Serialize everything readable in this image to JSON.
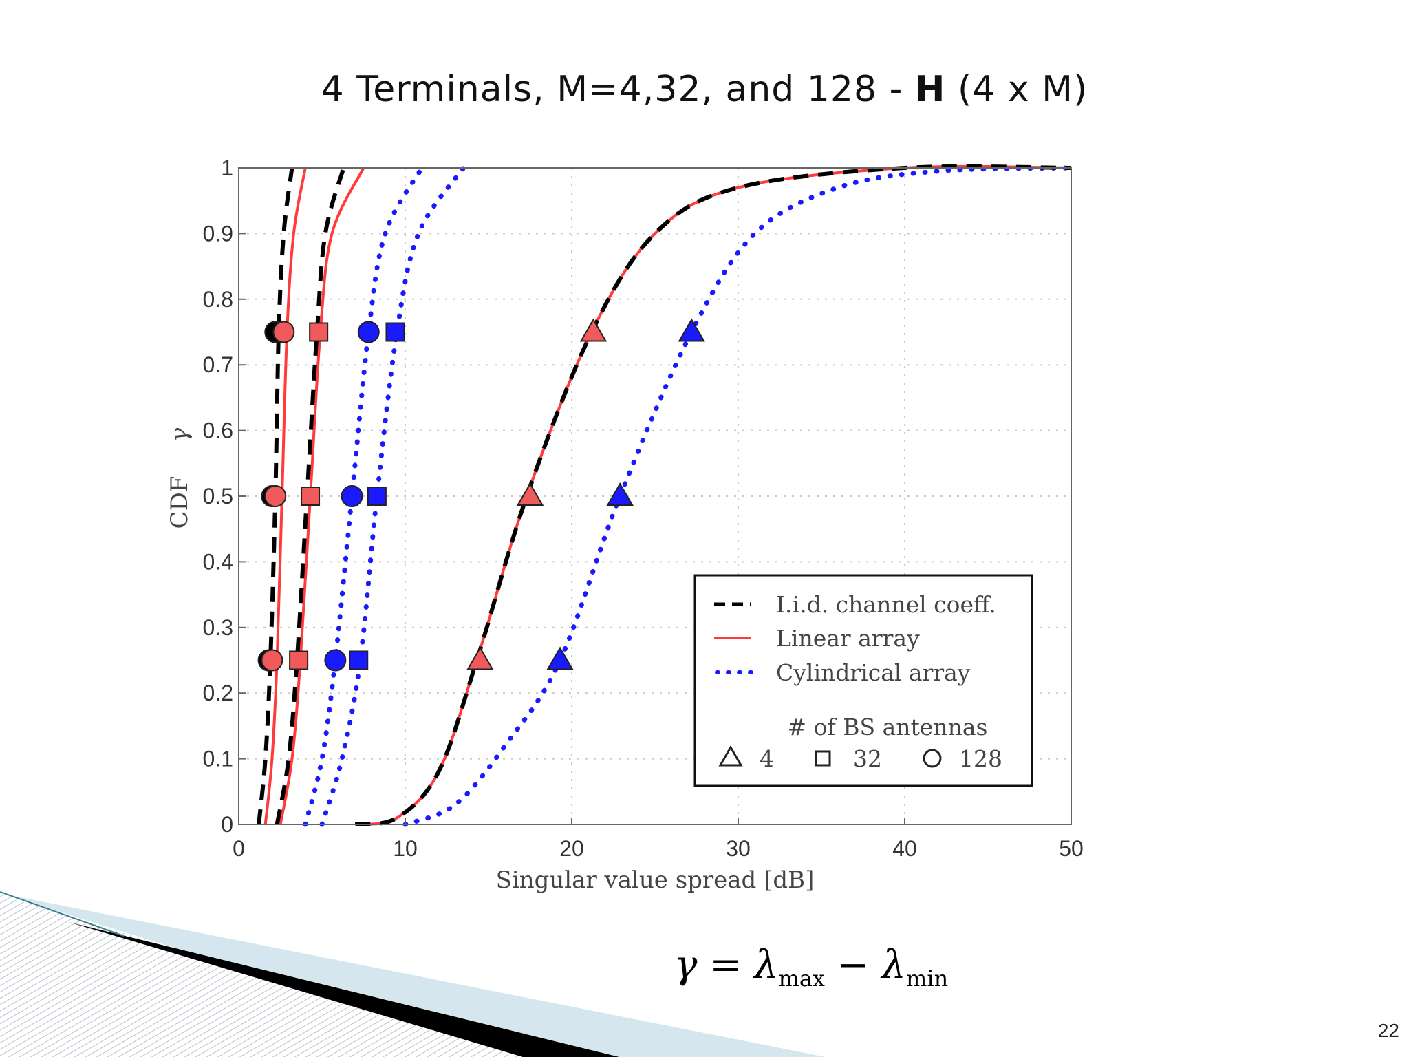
{
  "slide": {
    "title_prefix": "4 Terminals, M=4,32, and 128 - ",
    "title_bold": "H",
    "title_suffix": " (4 x M)",
    "formula": {
      "gamma": "γ",
      "equals": " = ",
      "lambda": "λ",
      "max": "max",
      "minus": " − ",
      "min": "min"
    },
    "page_number": "22"
  },
  "chart_data": {
    "type": "line",
    "xlabel": "Singular value spread [dB]",
    "ylabel": "CDF",
    "ylabel_symbol": "γ",
    "xlim": [
      0,
      50
    ],
    "ylim": [
      0,
      1
    ],
    "xticks": [
      "0",
      "10",
      "20",
      "30",
      "40",
      "50"
    ],
    "yticks": [
      "0",
      "0.1",
      "0.2",
      "0.3",
      "0.4",
      "0.5",
      "0.6",
      "0.7",
      "0.8",
      "0.9",
      "1"
    ],
    "grid": true,
    "legend": {
      "placement": "lower-right",
      "entries": [
        "I.i.d. channel coeff.",
        "Linear array",
        "Cylindrical array"
      ],
      "antenna_title": "# of BS antennas",
      "antenna_labels": [
        "4",
        "32",
        "128"
      ]
    },
    "colors": {
      "iid": "#000000",
      "linear": "#ff3b3b",
      "cylindrical": "#1a1aff",
      "marker_red": "#f05a5a"
    },
    "series": [
      {
        "model": "iid",
        "M": 128,
        "points": [
          [
            1.2,
            0
          ],
          [
            1.6,
            0.1
          ],
          [
            1.9,
            0.25
          ],
          [
            2.2,
            0.5
          ],
          [
            2.4,
            0.75
          ],
          [
            2.7,
            0.9
          ],
          [
            3.2,
            1
          ]
        ]
      },
      {
        "model": "linear",
        "M": 128,
        "points": [
          [
            1.6,
            0
          ],
          [
            2.0,
            0.1
          ],
          [
            2.3,
            0.25
          ],
          [
            2.6,
            0.5
          ],
          [
            2.9,
            0.75
          ],
          [
            3.3,
            0.9
          ],
          [
            4.0,
            1
          ]
        ]
      },
      {
        "model": "iid",
        "M": 32,
        "points": [
          [
            2.3,
            0
          ],
          [
            3.0,
            0.1
          ],
          [
            3.5,
            0.25
          ],
          [
            4.1,
            0.5
          ],
          [
            4.7,
            0.75
          ],
          [
            5.2,
            0.9
          ],
          [
            6.3,
            1
          ]
        ]
      },
      {
        "model": "linear",
        "M": 32,
        "points": [
          [
            2.5,
            0
          ],
          [
            3.2,
            0.1
          ],
          [
            3.7,
            0.25
          ],
          [
            4.3,
            0.5
          ],
          [
            4.9,
            0.75
          ],
          [
            5.6,
            0.9
          ],
          [
            7.5,
            1
          ]
        ]
      },
      {
        "model": "cylindrical",
        "M": 128,
        "points": [
          [
            4.0,
            0
          ],
          [
            5.0,
            0.1
          ],
          [
            5.8,
            0.25
          ],
          [
            6.8,
            0.5
          ],
          [
            7.8,
            0.75
          ],
          [
            8.8,
            0.9
          ],
          [
            11.0,
            1
          ]
        ]
      },
      {
        "model": "cylindrical",
        "M": 32,
        "points": [
          [
            5.0,
            0
          ],
          [
            6.2,
            0.1
          ],
          [
            7.3,
            0.25
          ],
          [
            8.3,
            0.5
          ],
          [
            9.5,
            0.75
          ],
          [
            10.8,
            0.9
          ],
          [
            13.5,
            1
          ]
        ]
      },
      {
        "model": "iid",
        "M": 4,
        "points": [
          [
            7,
            0
          ],
          [
            9.5,
            0.01
          ],
          [
            12,
            0.08
          ],
          [
            14.3,
            0.25
          ],
          [
            17.3,
            0.5
          ],
          [
            21.2,
            0.75
          ],
          [
            25,
            0.9
          ],
          [
            30,
            0.97
          ],
          [
            40,
            1
          ],
          [
            50,
            1
          ]
        ]
      },
      {
        "model": "linear",
        "M": 4,
        "points": [
          [
            7,
            0
          ],
          [
            9.5,
            0.01
          ],
          [
            12,
            0.08
          ],
          [
            14.3,
            0.25
          ],
          [
            17.3,
            0.5
          ],
          [
            21.2,
            0.75
          ],
          [
            25,
            0.9
          ],
          [
            30,
            0.97
          ],
          [
            40,
            1
          ],
          [
            50,
            1
          ]
        ]
      },
      {
        "model": "cylindrical",
        "M": 4,
        "points": [
          [
            10,
            0
          ],
          [
            13,
            0.03
          ],
          [
            16,
            0.12
          ],
          [
            19.3,
            0.25
          ],
          [
            22.9,
            0.5
          ],
          [
            27.2,
            0.75
          ],
          [
            31,
            0.9
          ],
          [
            36,
            0.97
          ],
          [
            42,
            0.995
          ],
          [
            50,
            1
          ]
        ]
      }
    ],
    "markers": [
      {
        "model": "iid",
        "M": 128,
        "x": 2.2,
        "y": 0.75
      },
      {
        "model": "linear",
        "M": 128,
        "x": 2.7,
        "y": 0.75
      },
      {
        "model": "linear",
        "M": 32,
        "x": 4.8,
        "y": 0.75
      },
      {
        "model": "cylindrical",
        "M": 128,
        "x": 7.8,
        "y": 0.75
      },
      {
        "model": "cylindrical",
        "M": 32,
        "x": 9.4,
        "y": 0.75
      },
      {
        "model": "linear",
        "M": 4,
        "x": 21.3,
        "y": 0.75
      },
      {
        "model": "cylindrical",
        "M": 4,
        "x": 27.2,
        "y": 0.75
      },
      {
        "model": "iid",
        "M": 128,
        "x": 2.0,
        "y": 0.5
      },
      {
        "model": "linear",
        "M": 128,
        "x": 2.2,
        "y": 0.5
      },
      {
        "model": "linear",
        "M": 32,
        "x": 4.3,
        "y": 0.5
      },
      {
        "model": "cylindrical",
        "M": 128,
        "x": 6.8,
        "y": 0.5
      },
      {
        "model": "cylindrical",
        "M": 32,
        "x": 8.3,
        "y": 0.5
      },
      {
        "model": "linear",
        "M": 4,
        "x": 17.5,
        "y": 0.5
      },
      {
        "model": "cylindrical",
        "M": 4,
        "x": 22.9,
        "y": 0.5
      },
      {
        "model": "iid",
        "M": 128,
        "x": 1.8,
        "y": 0.25
      },
      {
        "model": "linear",
        "M": 128,
        "x": 2.0,
        "y": 0.25
      },
      {
        "model": "linear",
        "M": 32,
        "x": 3.6,
        "y": 0.25
      },
      {
        "model": "cylindrical",
        "M": 128,
        "x": 5.8,
        "y": 0.25
      },
      {
        "model": "cylindrical",
        "M": 32,
        "x": 7.2,
        "y": 0.25
      },
      {
        "model": "linear",
        "M": 4,
        "x": 14.5,
        "y": 0.25
      },
      {
        "model": "cylindrical",
        "M": 4,
        "x": 19.3,
        "y": 0.25
      }
    ]
  }
}
